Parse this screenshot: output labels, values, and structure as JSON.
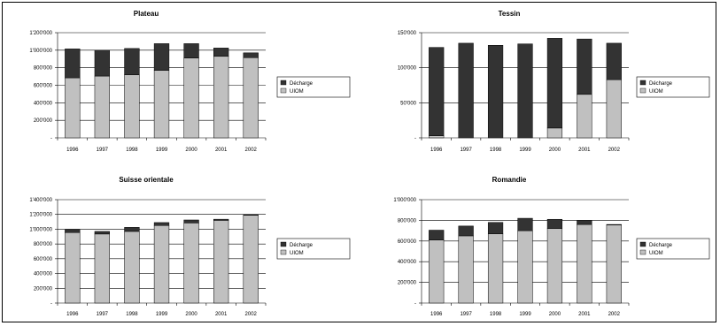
{
  "legend_labels": {
    "decharge": "Décharge",
    "uiom": "UIOM"
  },
  "colors": {
    "decharge": "#333333",
    "uiom": "#c0c0c0"
  },
  "chart_data": [
    {
      "type": "bar",
      "stacked": true,
      "title": "Plateau",
      "categories": [
        "1996",
        "1997",
        "1998",
        "1999",
        "2000",
        "2001",
        "2002"
      ],
      "series": [
        {
          "name": "UIOM",
          "values": [
            685000,
            705000,
            720000,
            770000,
            910000,
            930000,
            915000
          ]
        },
        {
          "name": "Décharge",
          "values": [
            330000,
            295000,
            300000,
            305000,
            165000,
            95000,
            55000
          ]
        }
      ],
      "ylim": [
        0,
        1200000
      ],
      "yticks": [
        "-",
        "200'000",
        "400'000",
        "600'000",
        "800'000",
        "1'000'000",
        "1'200'000"
      ],
      "legend": "right"
    },
    {
      "type": "bar",
      "stacked": true,
      "title": "Tessin",
      "categories": [
        "1996",
        "1997",
        "1998",
        "1999",
        "2000",
        "2001",
        "2002"
      ],
      "series": [
        {
          "name": "UIOM",
          "values": [
            3000,
            0,
            0,
            0,
            14000,
            62000,
            83000
          ]
        },
        {
          "name": "Décharge",
          "values": [
            126000,
            135000,
            132000,
            134000,
            128000,
            79000,
            52000
          ]
        }
      ],
      "ylim": [
        0,
        150000
      ],
      "yticks": [
        "-",
        "50'000",
        "100'000",
        "150'000"
      ],
      "legend": "right"
    },
    {
      "type": "bar",
      "stacked": true,
      "title": "Suisse orientale",
      "categories": [
        "1996",
        "1997",
        "1998",
        "1999",
        "2000",
        "2001",
        "2002"
      ],
      "series": [
        {
          "name": "UIOM",
          "values": [
            955000,
            935000,
            970000,
            1050000,
            1085000,
            1120000,
            1190000
          ]
        },
        {
          "name": "Décharge",
          "values": [
            40000,
            35000,
            55000,
            40000,
            40000,
            15000,
            5000
          ]
        }
      ],
      "ylim": [
        0,
        1400000
      ],
      "yticks": [
        "-",
        "200'000",
        "400'000",
        "600'000",
        "800'000",
        "1'000'000",
        "1'200'000",
        "1'400'000"
      ],
      "legend": "right"
    },
    {
      "type": "bar",
      "stacked": true,
      "title": "Romandie",
      "categories": [
        "1996",
        "1997",
        "1998",
        "1999",
        "2000",
        "2001",
        "2002"
      ],
      "series": [
        {
          "name": "UIOM",
          "values": [
            610000,
            650000,
            670000,
            700000,
            720000,
            760000,
            755000
          ]
        },
        {
          "name": "Décharge",
          "values": [
            95000,
            95000,
            110000,
            120000,
            90000,
            40000,
            5000
          ]
        }
      ],
      "ylim": [
        0,
        1000000
      ],
      "yticks": [
        "-",
        "200'000",
        "400'000",
        "600'000",
        "800'000",
        "1'000'000"
      ],
      "legend": "right"
    }
  ]
}
